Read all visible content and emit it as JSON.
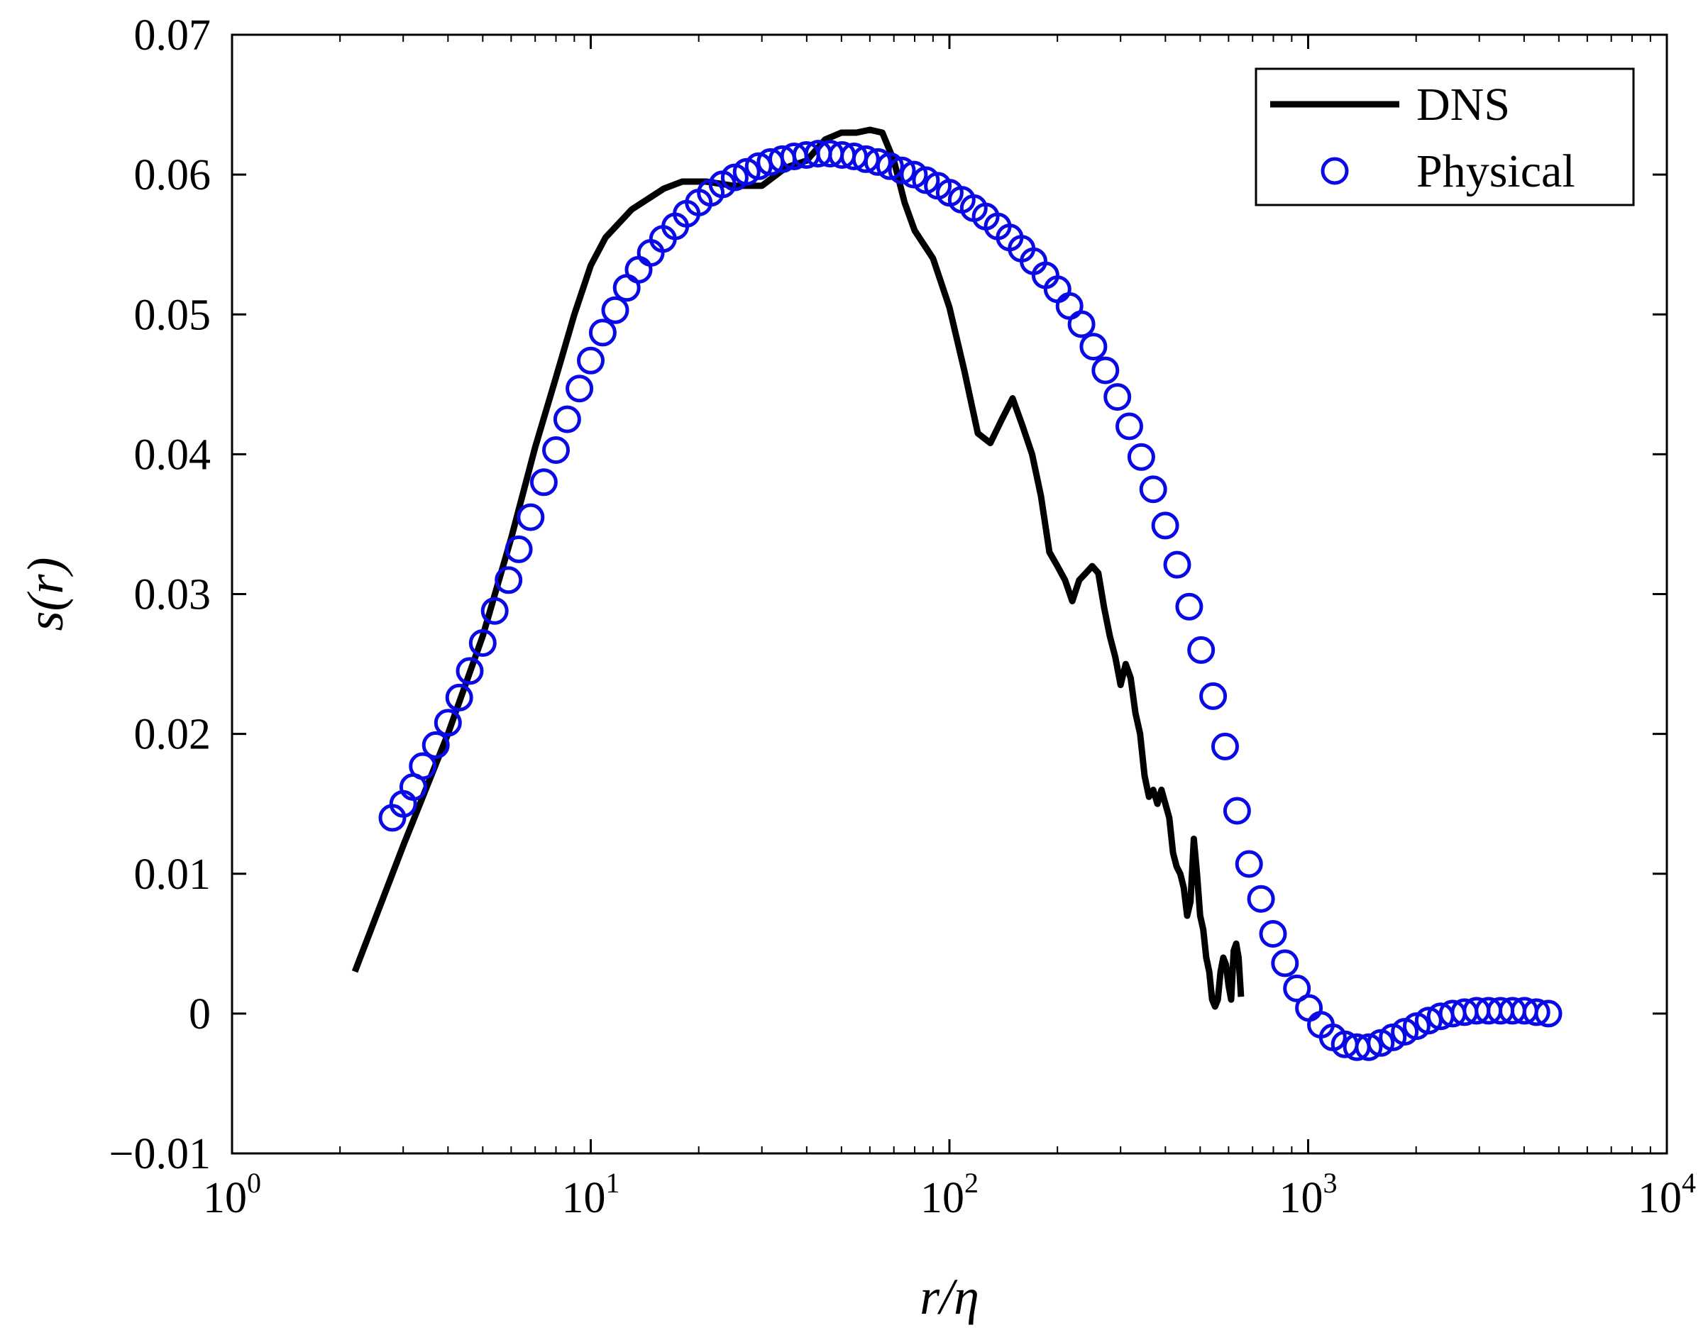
{
  "chart_data": {
    "type": "line",
    "xscale": "log",
    "xlim": [
      1,
      10000
    ],
    "ylim": [
      -0.01,
      0.07
    ],
    "xticks": [
      {
        "base": "10",
        "exp": "0",
        "value": 1
      },
      {
        "base": "10",
        "exp": "1",
        "value": 10
      },
      {
        "base": "10",
        "exp": "2",
        "value": 100
      },
      {
        "base": "10",
        "exp": "3",
        "value": 1000
      },
      {
        "base": "10",
        "exp": "4",
        "value": 10000
      }
    ],
    "yticks": [
      {
        "label": "−0.01",
        "value": -0.01
      },
      {
        "label": "0",
        "value": 0
      },
      {
        "label": "0.01",
        "value": 0.01
      },
      {
        "label": "0.02",
        "value": 0.02
      },
      {
        "label": "0.03",
        "value": 0.03
      },
      {
        "label": "0.04",
        "value": 0.04
      },
      {
        "label": "0.05",
        "value": 0.05
      },
      {
        "label": "0.06",
        "value": 0.06
      },
      {
        "label": "0.07",
        "value": 0.07
      }
    ],
    "xlabel": "r/η",
    "ylabel": "s(r)",
    "grid": false,
    "legend": "top-right",
    "series": [
      {
        "name": "DNS",
        "style": "line",
        "color": "#000000",
        "x": [
          2.2,
          3,
          4,
          5,
          6,
          7,
          8,
          9,
          10,
          11,
          13,
          16,
          18,
          21,
          25,
          30,
          35,
          40,
          45,
          50,
          55,
          60,
          65,
          70,
          75,
          80,
          90,
          100,
          110,
          120,
          130,
          140,
          150,
          160,
          170,
          180,
          190,
          200,
          210,
          220,
          230,
          240,
          250,
          260,
          270,
          280,
          290,
          300,
          310,
          320,
          330,
          340,
          350,
          360,
          370,
          380,
          390,
          400,
          410,
          420,
          430,
          440,
          450,
          460,
          470,
          480,
          490,
          500,
          510,
          520,
          530,
          540,
          550,
          560,
          570,
          580,
          590,
          600,
          610,
          620,
          630,
          640,
          650
        ],
        "y": [
          0.003,
          0.012,
          0.02,
          0.027,
          0.034,
          0.0405,
          0.0455,
          0.05,
          0.0535,
          0.0555,
          0.0575,
          0.059,
          0.0595,
          0.0595,
          0.0592,
          0.0592,
          0.0605,
          0.061,
          0.0625,
          0.063,
          0.063,
          0.0632,
          0.063,
          0.061,
          0.058,
          0.056,
          0.054,
          0.0505,
          0.046,
          0.0415,
          0.0408,
          0.0425,
          0.044,
          0.042,
          0.04,
          0.037,
          0.033,
          0.032,
          0.031,
          0.0295,
          0.031,
          0.0315,
          0.032,
          0.0315,
          0.029,
          0.027,
          0.0255,
          0.0235,
          0.025,
          0.024,
          0.0215,
          0.02,
          0.017,
          0.0155,
          0.016,
          0.015,
          0.016,
          0.015,
          0.014,
          0.0115,
          0.0105,
          0.01,
          0.009,
          0.007,
          0.008,
          0.0125,
          0.01,
          0.007,
          0.006,
          0.004,
          0.003,
          0.001,
          0.0005,
          0.001,
          0.003,
          0.004,
          0.0035,
          0.002,
          0.001,
          0.0045,
          0.005,
          0.004,
          0.0012
        ]
      },
      {
        "name": "Physical",
        "style": "markers",
        "marker": "circle-open",
        "color": "#0a0ae6",
        "x": [
          2.8,
          3.0,
          3.2,
          3.4,
          3.7,
          4.0,
          4.3,
          4.6,
          5.0,
          5.4,
          5.9,
          6.3,
          6.8,
          7.4,
          8.0,
          8.6,
          9.3,
          10.0,
          10.8,
          11.7,
          12.6,
          13.6,
          14.7,
          15.9,
          17.2,
          18.5,
          20.0,
          21.6,
          23.3,
          25.2,
          27.2,
          29.4,
          31.7,
          34.2,
          36.9,
          39.9,
          43.1,
          46.5,
          50.2,
          54.2,
          58.5,
          63.2,
          68.3,
          73.7,
          79.6,
          86.0,
          92.8,
          100.2,
          108.2,
          116.9,
          126.2,
          136.3,
          147.2,
          158.9,
          171.6,
          185.3,
          200.1,
          216.1,
          233.4,
          252.0,
          272.1,
          293.9,
          317.3,
          342.7,
          370.0,
          399.6,
          431.5,
          466.0,
          503.2,
          543.4,
          586.8,
          633.7,
          684.3,
          739.0,
          798.0,
          861.7,
          930.6,
          1004.9,
          1085.2,
          1171.9,
          1265.5,
          1366.6,
          1475.8,
          1593.7,
          1721.0,
          1858.5,
          2007.0,
          2167.3,
          2340.5,
          2527.5,
          2729.4,
          2947.4,
          3182.9,
          3437.2,
          3711.8,
          4008.3,
          4328.5,
          4674.3
        ],
        "y": [
          0.014,
          0.015,
          0.0162,
          0.0177,
          0.0192,
          0.0208,
          0.0226,
          0.0245,
          0.0265,
          0.0288,
          0.031,
          0.0332,
          0.0355,
          0.038,
          0.0403,
          0.0425,
          0.0447,
          0.0467,
          0.0487,
          0.0503,
          0.0519,
          0.0532,
          0.0544,
          0.0554,
          0.0563,
          0.0572,
          0.058,
          0.0587,
          0.0593,
          0.0598,
          0.0602,
          0.0606,
          0.0609,
          0.0611,
          0.0613,
          0.0614,
          0.0615,
          0.0615,
          0.0614,
          0.0613,
          0.0611,
          0.0609,
          0.0606,
          0.0603,
          0.06,
          0.0596,
          0.0592,
          0.0587,
          0.0582,
          0.0576,
          0.057,
          0.0563,
          0.0555,
          0.0547,
          0.0538,
          0.0528,
          0.0518,
          0.0506,
          0.0493,
          0.0477,
          0.046,
          0.0441,
          0.042,
          0.0398,
          0.0375,
          0.0349,
          0.0321,
          0.0291,
          0.026,
          0.0227,
          0.0191,
          0.0145,
          0.0107,
          0.0082,
          0.0057,
          0.0036,
          0.0018,
          0.0004,
          -0.0008,
          -0.0017,
          -0.0022,
          -0.0024,
          -0.0024,
          -0.0021,
          -0.0017,
          -0.0013,
          -0.0009,
          -0.0005,
          -0.0002,
          0.0,
          0.0001,
          0.0002,
          0.0002,
          0.0002,
          0.0002,
          0.0002,
          0.0001,
          0.0
        ]
      }
    ]
  }
}
